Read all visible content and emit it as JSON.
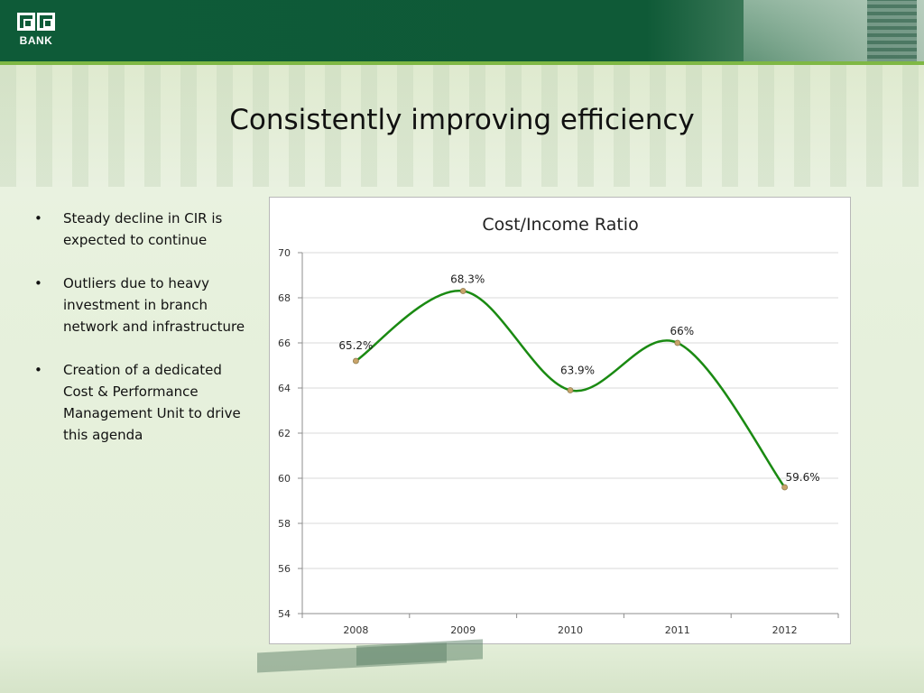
{
  "logo": {
    "text": "BANK"
  },
  "title": "Consistently improving efficiency",
  "bullets": [
    "Steady decline in CIR is expected to continue",
    "Outliers due to heavy investment in branch network and infrastructure",
    "Creation of a dedicated Cost & Performance Management Unit to drive this agenda"
  ],
  "bullet_glyph": "•",
  "colors": {
    "header": "#0e5b38",
    "accent": "#7fb844",
    "line": "#1a8a12",
    "marker": "#c9a36a"
  },
  "chart_data": {
    "type": "line",
    "title": "Cost/Income Ratio",
    "xlabel": "",
    "ylabel": "",
    "categories": [
      "2008",
      "2009",
      "2010",
      "2011",
      "2012"
    ],
    "series": [
      {
        "values": [
          65.2,
          68.3,
          63.9,
          66,
          59.6
        ]
      }
    ],
    "data_labels": [
      "65.2%",
      "68.3%",
      "63.9%",
      "66%",
      "59.6%"
    ],
    "ylim": [
      54,
      70
    ],
    "yticks": [
      54,
      56,
      58,
      60,
      62,
      64,
      66,
      68,
      70
    ],
    "grid": true,
    "smooth": true,
    "legend": "none"
  }
}
